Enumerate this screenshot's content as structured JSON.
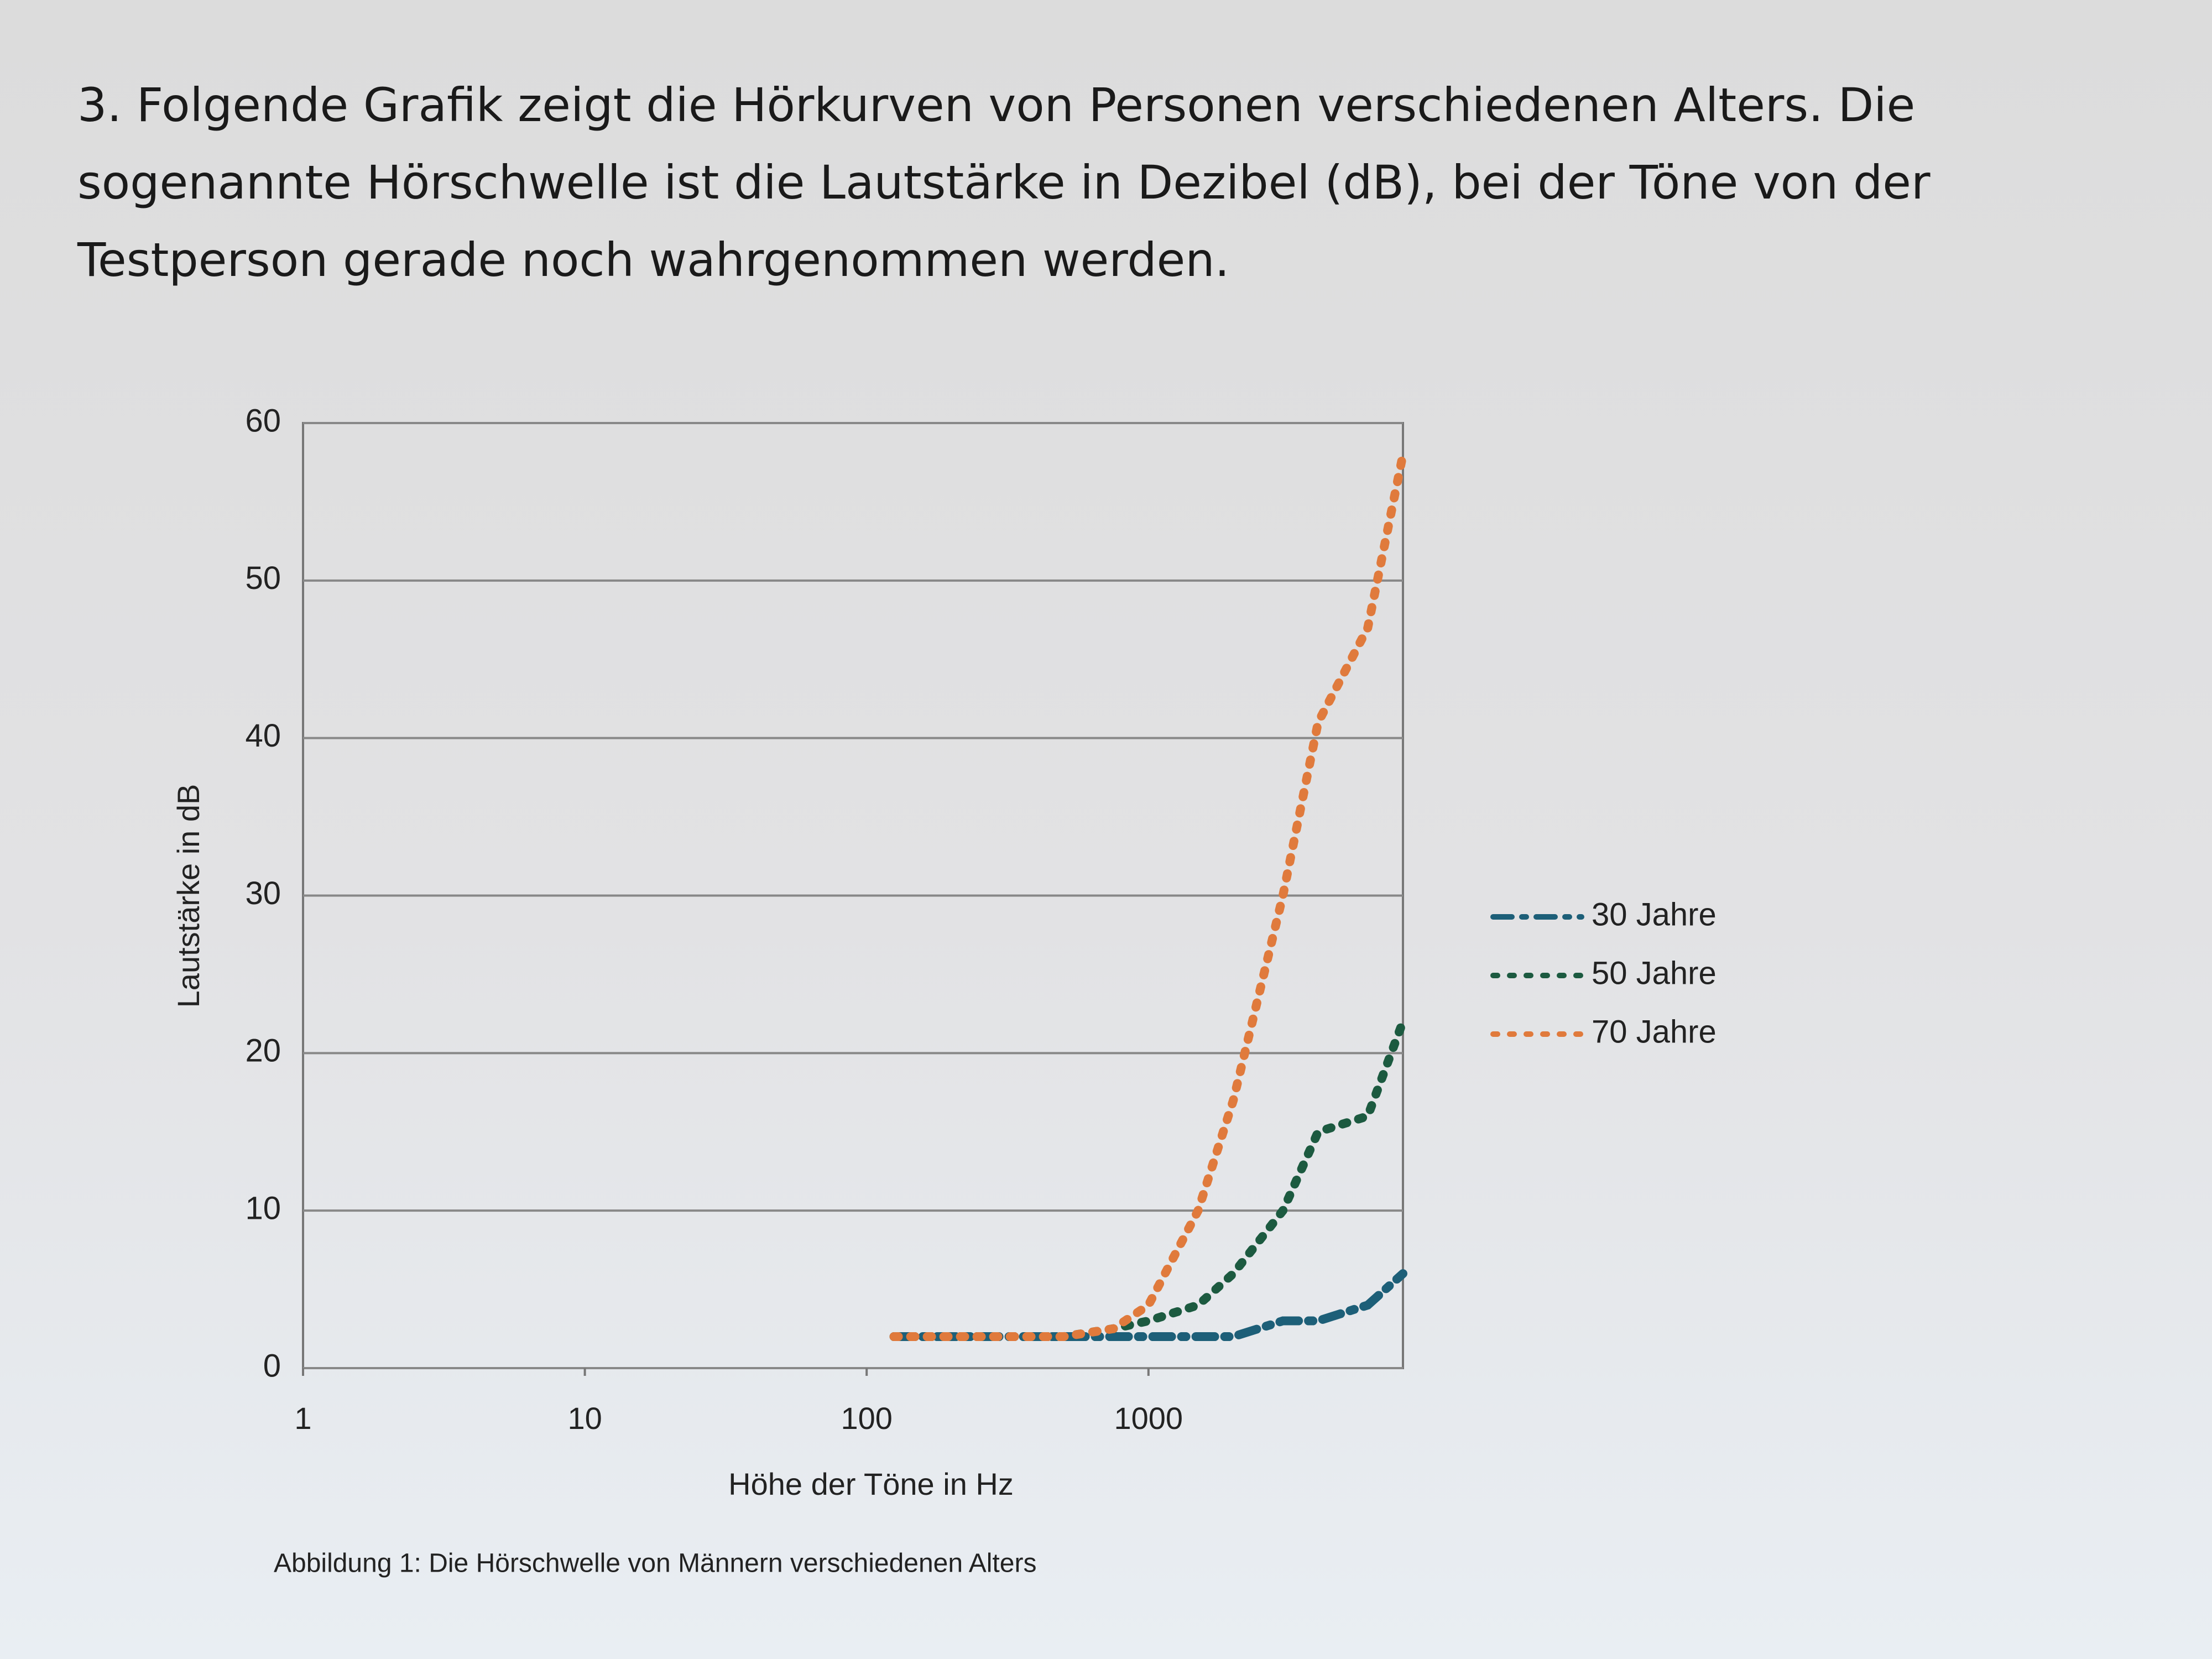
{
  "question": "3. Folgende Grafik zeigt die Hörkurven von Personen verschiedenen Alters. Die sogenannte Hörschwelle ist die Lautstärke in Dezibel (dB), bei der Töne von der Testperson gerade noch wahrgenommen werden.",
  "chart_data": {
    "type": "line",
    "x_label": "Höhe der Töne in Hz",
    "y_label": "Lautstärke in dB",
    "x": [
      125,
      250,
      500,
      750,
      1000,
      1500,
      2000,
      3000,
      4000,
      6000,
      8000
    ],
    "series": [
      {
        "name": "30 Jahre",
        "color": "#1d5f78",
        "style": "dashdot",
        "values": [
          2,
          2,
          2,
          2,
          2,
          2,
          2,
          3,
          3,
          4,
          6
        ]
      },
      {
        "name": "50 Jahre",
        "color": "#1c5a40",
        "style": "dotted",
        "values": [
          2,
          2,
          2,
          2.5,
          3,
          4,
          6,
          10,
          15,
          16,
          22
        ]
      },
      {
        "name": "70 Jahre",
        "color": "#e07a3c",
        "style": "dotted",
        "values": [
          2,
          2,
          2,
          2.5,
          4,
          10,
          17,
          30,
          41,
          47,
          58
        ]
      }
    ],
    "xscale": "log",
    "xlim": [
      1,
      8000
    ],
    "xticks": [
      1,
      10,
      100,
      1000
    ],
    "ylim": [
      0,
      60
    ],
    "yticks": [
      0,
      10,
      20,
      30,
      40,
      50,
      60
    ],
    "grid": true,
    "legend": "right"
  },
  "caption": "Abbildung 1:  Die Hörschwelle von Männern verschiedenen Alters"
}
